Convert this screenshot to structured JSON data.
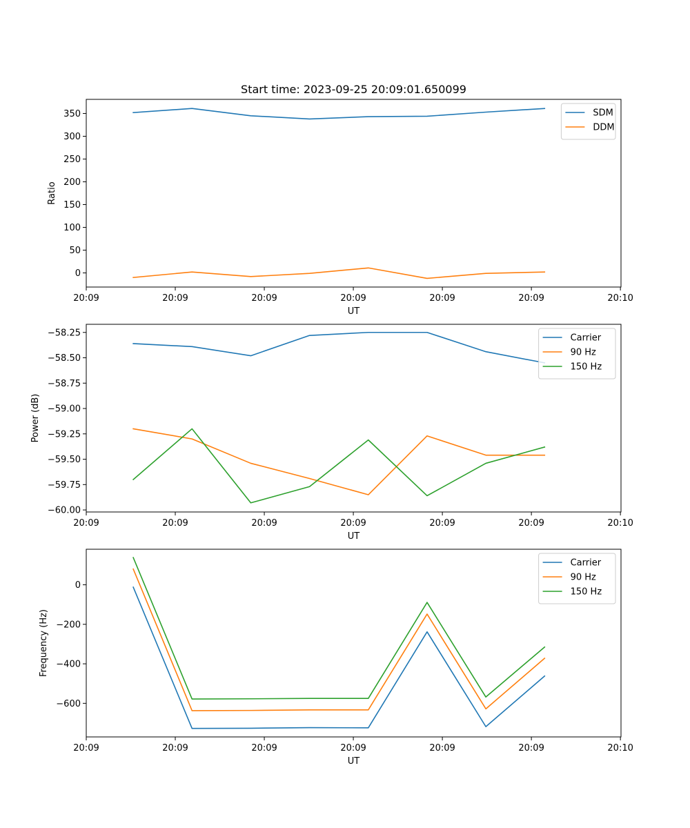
{
  "chart_data": [
    {
      "type": "line",
      "title": "Start time: 2023-09-25 20:09:01.650099",
      "xlabel": "UT",
      "ylabel": "Ratio",
      "x": [
        1,
        2,
        3,
        4,
        5,
        6,
        7,
        8
      ],
      "xlim": [
        0.2,
        9.3
      ],
      "x_ticks": [
        {
          "v": 0.2,
          "label": "20:09"
        },
        {
          "v": 1.715,
          "label": "20:09"
        },
        {
          "v": 3.23,
          "label": "20:09"
        },
        {
          "v": 4.745,
          "label": "20:09"
        },
        {
          "v": 6.26,
          "label": "20:09"
        },
        {
          "v": 7.775,
          "label": "20:09"
        },
        {
          "v": 9.29,
          "label": "20:10"
        }
      ],
      "ylim": [
        -31,
        381
      ],
      "y_ticks": [
        {
          "v": 0,
          "label": "0"
        },
        {
          "v": 50,
          "label": "50"
        },
        {
          "v": 100,
          "label": "100"
        },
        {
          "v": 150,
          "label": "150"
        },
        {
          "v": 200,
          "label": "200"
        },
        {
          "v": 250,
          "label": "250"
        },
        {
          "v": 300,
          "label": "300"
        },
        {
          "v": 350,
          "label": "350"
        }
      ],
      "legend_position": "top-right",
      "series": [
        {
          "name": "SDM",
          "color": "#1f77b4",
          "values": [
            352,
            361,
            345,
            338,
            343,
            344,
            353,
            361
          ]
        },
        {
          "name": "DDM",
          "color": "#ff7f0e",
          "values": [
            -10,
            2,
            -8,
            -1,
            11,
            -12,
            -1,
            2
          ]
        }
      ]
    },
    {
      "type": "line",
      "title": "",
      "xlabel": "UT",
      "ylabel": "Power (dB)",
      "x": [
        1,
        2,
        3,
        4,
        5,
        6,
        7,
        8
      ],
      "xlim": [
        0.2,
        9.3
      ],
      "x_ticks": [
        {
          "v": 0.2,
          "label": "20:09"
        },
        {
          "v": 1.715,
          "label": "20:09"
        },
        {
          "v": 3.23,
          "label": "20:09"
        },
        {
          "v": 4.745,
          "label": "20:09"
        },
        {
          "v": 6.26,
          "label": "20:09"
        },
        {
          "v": 7.775,
          "label": "20:09"
        },
        {
          "v": 9.29,
          "label": "20:10"
        }
      ],
      "ylim": [
        -60.02,
        -58.17
      ],
      "y_ticks": [
        {
          "v": -60.0,
          "label": "−60.00"
        },
        {
          "v": -59.75,
          "label": "−59.75"
        },
        {
          "v": -59.5,
          "label": "−59.50"
        },
        {
          "v": -59.25,
          "label": "−59.25"
        },
        {
          "v": -59.0,
          "label": "−59.00"
        },
        {
          "v": -58.75,
          "label": "−58.75"
        },
        {
          "v": -58.5,
          "label": "−58.50"
        },
        {
          "v": -58.25,
          "label": "−58.25"
        }
      ],
      "legend_position": "top-right",
      "series": [
        {
          "name": "Carrier",
          "color": "#1f77b4",
          "values": [
            -58.36,
            -58.39,
            -58.48,
            -58.28,
            -58.25,
            -58.25,
            -58.44,
            -58.55
          ]
        },
        {
          "name": "90 Hz",
          "color": "#ff7f0e",
          "values": [
            -59.2,
            -59.3,
            -59.54,
            -59.69,
            -59.85,
            -59.27,
            -59.46,
            -59.46
          ]
        },
        {
          "name": "150 Hz",
          "color": "#2ca02c",
          "values": [
            -59.7,
            -59.2,
            -59.93,
            -59.77,
            -59.31,
            -59.86,
            -59.54,
            -59.38
          ]
        }
      ]
    },
    {
      "type": "line",
      "title": "",
      "xlabel": "UT",
      "ylabel": "Frequency (Hz)",
      "x": [
        1,
        2,
        3,
        4,
        5,
        6,
        7,
        8
      ],
      "xlim": [
        0.2,
        9.3
      ],
      "x_ticks": [
        {
          "v": 0.2,
          "label": "20:09"
        },
        {
          "v": 1.715,
          "label": "20:09"
        },
        {
          "v": 3.23,
          "label": "20:09"
        },
        {
          "v": 4.745,
          "label": "20:09"
        },
        {
          "v": 6.26,
          "label": "20:09"
        },
        {
          "v": 7.775,
          "label": "20:09"
        },
        {
          "v": 9.29,
          "label": "20:10"
        }
      ],
      "ylim": [
        -770,
        180
      ],
      "y_ticks": [
        {
          "v": 0,
          "label": "0"
        },
        {
          "v": -200,
          "label": "−200"
        },
        {
          "v": -400,
          "label": "−400"
        },
        {
          "v": -600,
          "label": "−600"
        }
      ],
      "legend_position": "top-right",
      "series": [
        {
          "name": "Carrier",
          "color": "#1f77b4",
          "values": [
            -12,
            -727,
            -726,
            -723,
            -724,
            -238,
            -718,
            -462
          ]
        },
        {
          "name": "90 Hz",
          "color": "#ff7f0e",
          "values": [
            80,
            -637,
            -636,
            -633,
            -633,
            -148,
            -628,
            -372
          ]
        },
        {
          "name": "150 Hz",
          "color": "#2ca02c",
          "values": [
            138,
            -578,
            -577,
            -575,
            -575,
            -89,
            -568,
            -315
          ]
        }
      ]
    }
  ]
}
